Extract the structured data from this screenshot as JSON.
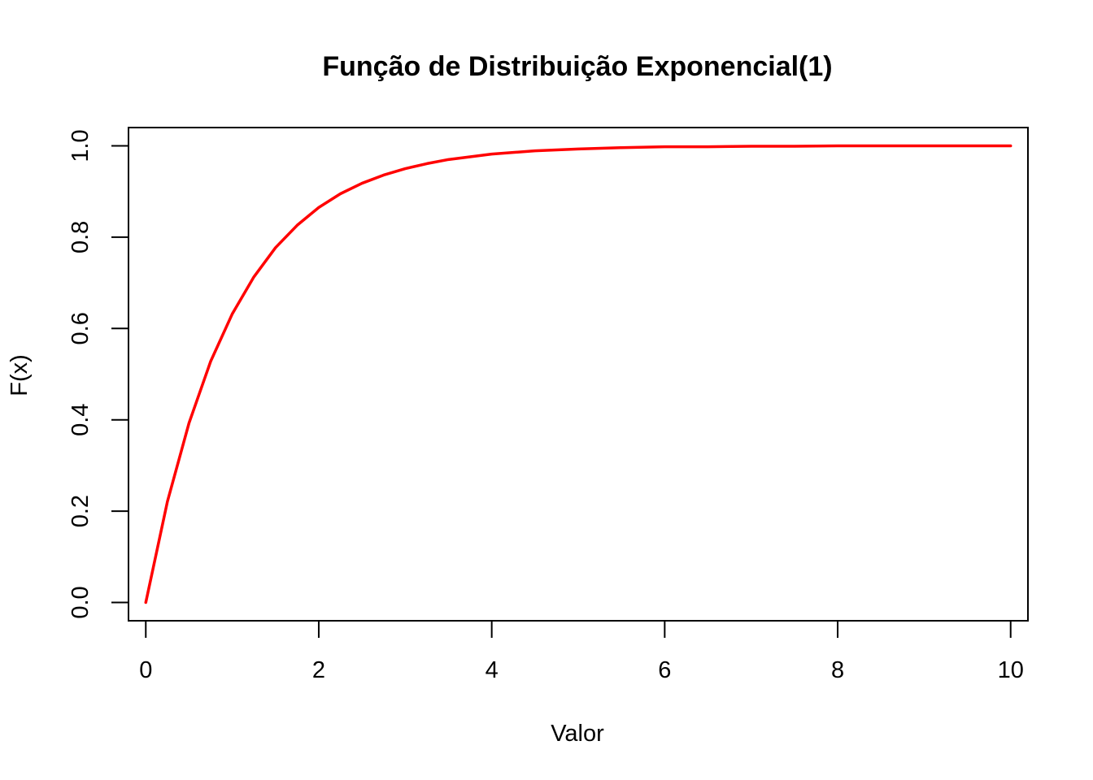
{
  "chart_data": {
    "type": "line",
    "title": "Função de Distribuição Exponencial(1)",
    "xlabel": "Valor",
    "ylabel": "F(x)",
    "xlim": [
      -0.2,
      10.2
    ],
    "ylim": [
      -0.04,
      1.04
    ],
    "x_ticks": [
      0,
      2,
      4,
      6,
      8,
      10
    ],
    "x_tick_labels": [
      "0",
      "2",
      "4",
      "6",
      "8",
      "10"
    ],
    "y_ticks": [
      0.0,
      0.2,
      0.4,
      0.6,
      0.8,
      1.0
    ],
    "y_tick_labels": [
      "0.0",
      "0.2",
      "0.4",
      "0.6",
      "0.8",
      "1.0"
    ],
    "grid": false,
    "series": [
      {
        "color": "#ff0000",
        "x": [
          0,
          0.25,
          0.5,
          0.75,
          1,
          1.25,
          1.5,
          1.75,
          2,
          2.25,
          2.5,
          2.75,
          3,
          3.25,
          3.5,
          3.75,
          4,
          4.5,
          5,
          5.5,
          6,
          6.5,
          7,
          7.5,
          8,
          8.5,
          9,
          9.5,
          10
        ],
        "y": [
          0,
          0.221,
          0.393,
          0.528,
          0.632,
          0.713,
          0.777,
          0.826,
          0.865,
          0.895,
          0.918,
          0.936,
          0.95,
          0.961,
          0.97,
          0.976,
          0.982,
          0.989,
          0.993,
          0.996,
          0.998,
          0.998,
          0.999,
          0.999,
          1.0,
          1.0,
          1.0,
          1.0,
          1.0
        ]
      }
    ]
  }
}
